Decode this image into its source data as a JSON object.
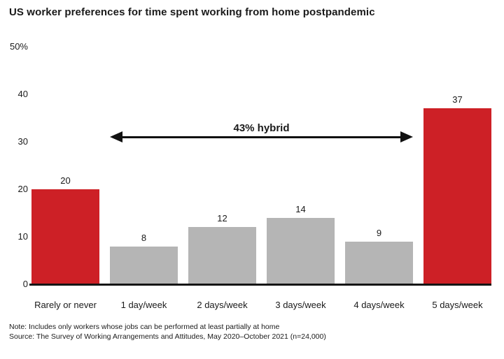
{
  "chart_data": {
    "type": "bar",
    "title": "US worker preferences for time spent working from home postpandemic",
    "categories": [
      "Rarely or never",
      "1 day/week",
      "2 days/week",
      "3 days/week",
      "4 days/week",
      "5 days/week"
    ],
    "values": [
      20,
      8,
      12,
      14,
      9,
      37
    ],
    "bar_colors": [
      "#cd2026",
      "#b5b5b5",
      "#b5b5b5",
      "#b5b5b5",
      "#b5b5b5",
      "#cd2026"
    ],
    "xlabel": "",
    "ylabel": "",
    "ylim": [
      0,
      50
    ],
    "yticks": [
      {
        "value": 50,
        "label": "50%"
      },
      {
        "value": 40,
        "label": "40"
      },
      {
        "value": 30,
        "label": "30"
      },
      {
        "value": 20,
        "label": "20"
      },
      {
        "value": 10,
        "label": "10"
      },
      {
        "value": 0,
        "label": "0"
      }
    ],
    "grid": false,
    "legend": false,
    "value_labels": true,
    "annotation": {
      "text": "43% hybrid",
      "from_category": "1 day/week",
      "to_category": "4 days/week",
      "y_value": 31
    }
  },
  "footnotes": {
    "note": "Note: Includes only workers whose jobs can be performed at least partially at home",
    "source": "Source: The Survey of Working Arrangements and Attitudes, May 2020–October 2021 (n=24,000)"
  },
  "colors": {
    "highlight": "#cd2026",
    "neutral": "#b5b5b5",
    "axis": "#151515",
    "text": "#1a1a1a"
  }
}
